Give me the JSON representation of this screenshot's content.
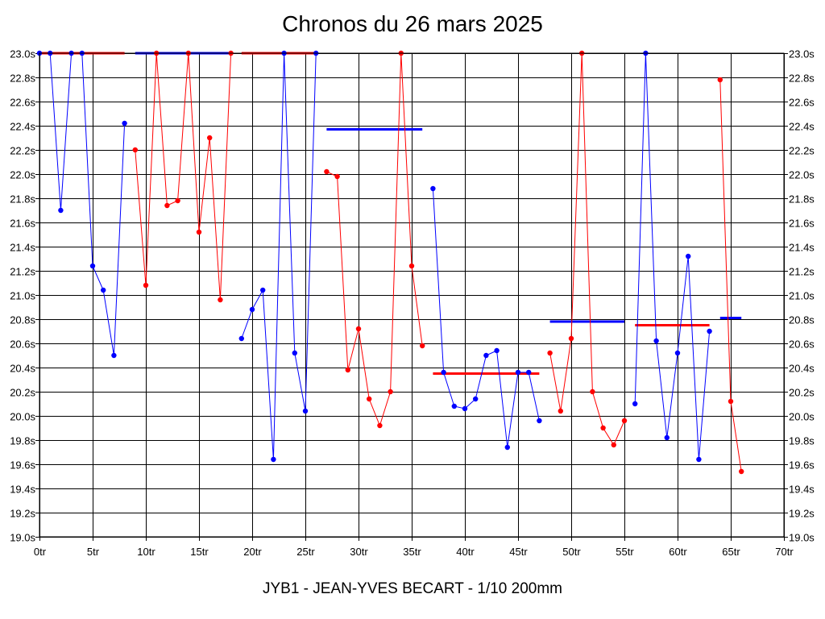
{
  "chart_data": {
    "type": "line",
    "title": "Chronos du 26 mars 2025",
    "footer": "JYB1 - JEAN-YVES BECART - 1/10 200mm",
    "xlim": [
      0,
      70
    ],
    "ylim": [
      19.0,
      23.0
    ],
    "x_ticks": [
      0,
      5,
      10,
      15,
      20,
      25,
      30,
      35,
      40,
      45,
      50,
      55,
      60,
      65,
      70
    ],
    "x_tick_labels": [
      "0tr",
      "5tr",
      "10tr",
      "15tr",
      "20tr",
      "25tr",
      "30tr",
      "35tr",
      "40tr",
      "45tr",
      "50tr",
      "55tr",
      "60tr",
      "65tr",
      "70tr"
    ],
    "y_ticks": [
      19.0,
      19.2,
      19.4,
      19.6,
      19.8,
      20.0,
      20.2,
      20.4,
      20.6,
      20.8,
      21.0,
      21.2,
      21.4,
      21.6,
      21.8,
      22.0,
      22.2,
      22.4,
      22.6,
      22.8,
      23.0
    ],
    "y_tick_labels": [
      "19.0s",
      "19.2s",
      "19.4s",
      "19.6s",
      "19.8s",
      "20.0s",
      "20.2s",
      "20.4s",
      "20.6s",
      "20.8s",
      "21.0s",
      "21.2s",
      "21.4s",
      "21.6s",
      "21.8s",
      "22.0s",
      "22.2s",
      "22.4s",
      "22.6s",
      "22.8s",
      "23.0s"
    ],
    "grid": true,
    "colors": {
      "blue": "#0000ff",
      "red": "#ff0000"
    },
    "segments": [
      {
        "color": "blue",
        "x": [
          0,
          1,
          2,
          3,
          4,
          5,
          6,
          7,
          8
        ],
        "y": [
          23.0,
          23.0,
          21.7,
          23.0,
          23.0,
          21.24,
          21.04,
          20.5,
          22.42
        ]
      },
      {
        "color": "red",
        "x": [
          9,
          10,
          11,
          12,
          13,
          14,
          15,
          16,
          17,
          18
        ],
        "y": [
          22.2,
          21.08,
          23.0,
          21.74,
          21.78,
          23.0,
          21.52,
          22.3,
          20.96,
          23.0
        ]
      },
      {
        "color": "blue",
        "x": [
          19,
          20,
          21,
          22,
          23,
          24,
          25,
          26
        ],
        "y": [
          20.64,
          20.88,
          21.04,
          19.64,
          23.0,
          20.52,
          20.04,
          23.0
        ]
      },
      {
        "color": "red",
        "x": [
          27,
          28,
          29,
          30,
          31,
          32,
          33,
          34,
          35,
          36
        ],
        "y": [
          22.02,
          21.98,
          20.38,
          20.72,
          20.14,
          19.92,
          20.2,
          23.0,
          21.24,
          20.58
        ]
      },
      {
        "color": "blue",
        "x": [
          37,
          38,
          39,
          40,
          41,
          42,
          43,
          44,
          45,
          46,
          47
        ],
        "y": [
          21.88,
          20.36,
          20.08,
          20.06,
          20.14,
          20.5,
          20.54,
          19.74,
          20.36,
          20.36,
          19.96
        ]
      },
      {
        "color": "red",
        "x": [
          48,
          49,
          50,
          51,
          52,
          53,
          54,
          55
        ],
        "y": [
          20.52,
          20.04,
          20.64,
          23.0,
          20.2,
          19.9,
          19.76,
          19.96
        ]
      },
      {
        "color": "blue",
        "x": [
          56,
          57,
          58,
          59,
          60,
          61,
          62,
          63
        ],
        "y": [
          20.1,
          23.0,
          20.62,
          19.82,
          20.52,
          21.32,
          19.64,
          20.7
        ]
      },
      {
        "color": "red",
        "x": [
          64,
          65,
          66
        ],
        "y": [
          22.78,
          20.12,
          19.54
        ]
      }
    ],
    "averages": [
      {
        "color": "red",
        "x": [
          0,
          8
        ],
        "y": 23.0
      },
      {
        "color": "blue",
        "x": [
          9,
          18
        ],
        "y": 23.0
      },
      {
        "color": "red",
        "x": [
          19,
          26
        ],
        "y": 23.0
      },
      {
        "color": "blue",
        "x": [
          27,
          36
        ],
        "y": 22.37
      },
      {
        "color": "red",
        "x": [
          37,
          47
        ],
        "y": 20.35
      },
      {
        "color": "blue",
        "x": [
          48,
          55
        ],
        "y": 20.78
      },
      {
        "color": "red",
        "x": [
          56,
          63
        ],
        "y": 20.75
      },
      {
        "color": "blue",
        "x": [
          64,
          66
        ],
        "y": 20.81
      }
    ]
  }
}
